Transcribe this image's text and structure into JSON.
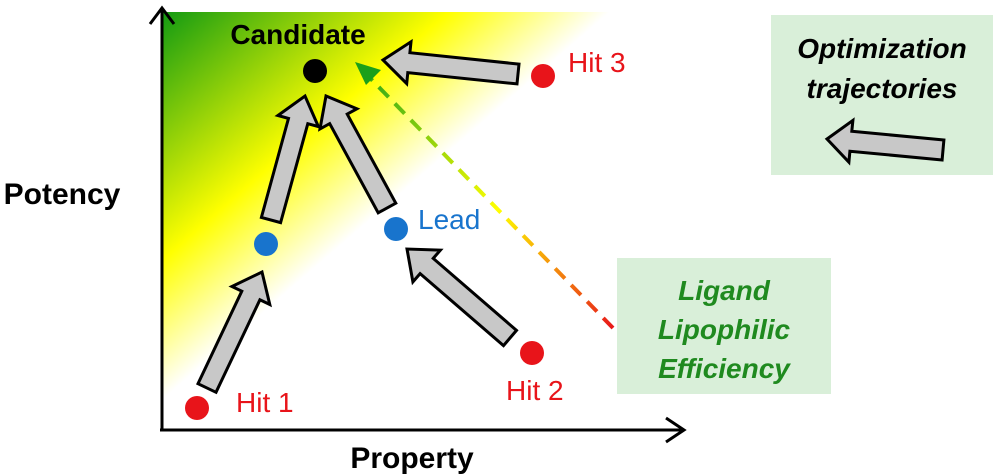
{
  "axes": {
    "y_label": "Potency",
    "x_label": "Property"
  },
  "points": [
    {
      "id": "hit1",
      "label": "Hit 1",
      "dot_color": "#e8141a",
      "label_color": "#e8141a"
    },
    {
      "id": "hit2",
      "label": "Hit 2",
      "dot_color": "#e8141a",
      "label_color": "#e8141a"
    },
    {
      "id": "hit3",
      "label": "Hit 3",
      "dot_color": "#e8141a",
      "label_color": "#e8141a"
    },
    {
      "id": "intermediate",
      "label": "",
      "dot_color": "#1874cd",
      "label_color": "#1874cd"
    },
    {
      "id": "lead",
      "label": "Lead",
      "dot_color": "#1874cd",
      "label_color": "#1874cd"
    },
    {
      "id": "candidate",
      "label": "Candidate",
      "dot_color": "#000000",
      "label_color": "#000000"
    }
  ],
  "legend": {
    "trajectories_line1": "Optimization",
    "trajectories_line2": "trajectories"
  },
  "lle_box": {
    "line1": "Ligand",
    "line2": "Lipophilic",
    "line3": "Efficiency",
    "text_color": "#1f8a1f"
  },
  "colors": {
    "arrow_fill": "#c8c8c8",
    "arrow_stroke": "#000000",
    "gradient_green": "#1aa01a",
    "gradient_yellow": "#ffff00",
    "box_fill": "#d9efd9"
  }
}
